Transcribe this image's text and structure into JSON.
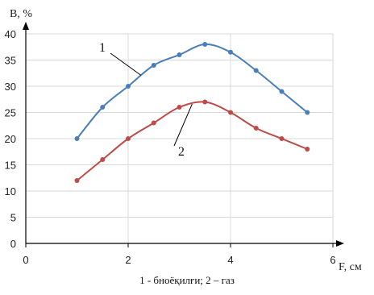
{
  "chart_data": {
    "type": "line",
    "ylabel": "B, %",
    "xlabel": "F, см",
    "caption": "1 - бноёқилғи; 2 – газ",
    "xlim": [
      0,
      6
    ],
    "ylim": [
      0,
      40
    ],
    "x_ticks": [
      "0",
      "2",
      "4",
      "6"
    ],
    "y_ticks": [
      "0",
      "5",
      "10",
      "15",
      "20",
      "25",
      "30",
      "35",
      "40"
    ],
    "grid": true,
    "series": [
      {
        "name": "1",
        "color": "#4a7ebb",
        "x": [
          1,
          1.5,
          2,
          2.5,
          3,
          3.5,
          4,
          4.5,
          5,
          5.5
        ],
        "values": [
          20,
          26,
          30,
          34,
          36,
          38,
          36.5,
          33,
          29,
          25
        ]
      },
      {
        "name": "2",
        "color": "#be4b48",
        "x": [
          1,
          1.5,
          2,
          2.5,
          3,
          3.5,
          4,
          4.5,
          5,
          5.5
        ],
        "values": [
          12,
          16,
          20,
          23,
          26,
          27,
          25,
          22,
          20,
          18
        ]
      }
    ]
  }
}
